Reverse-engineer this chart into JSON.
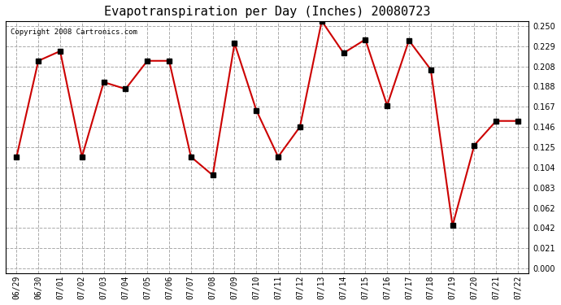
{
  "title": "Evapotranspiration per Day (Inches) 20080723",
  "copyright": "Copyright 2008 Cartronics.com",
  "dates": [
    "06/29",
    "06/30",
    "07/01",
    "07/02",
    "07/03",
    "07/04",
    "07/05",
    "07/06",
    "07/07",
    "07/08",
    "07/09",
    "07/10",
    "07/11",
    "07/12",
    "07/13",
    "07/14",
    "07/15",
    "07/16",
    "07/17",
    "07/18",
    "07/19",
    "07/20",
    "07/21",
    "07/22"
  ],
  "values": [
    0.115,
    0.214,
    0.224,
    0.115,
    0.192,
    0.185,
    0.214,
    0.214,
    0.115,
    0.096,
    0.232,
    0.163,
    0.115,
    0.146,
    0.255,
    0.222,
    0.236,
    0.168,
    0.235,
    0.205,
    0.044,
    0.127,
    0.152,
    0.152
  ],
  "line_color": "#cc0000",
  "marker": "s",
  "marker_size": 4,
  "marker_color": "#000000",
  "background_color": "#ffffff",
  "grid_color": "#aaaaaa",
  "ylim": [
    0.0,
    0.25
  ],
  "yticks": [
    0.0,
    0.021,
    0.042,
    0.062,
    0.083,
    0.104,
    0.125,
    0.146,
    0.167,
    0.188,
    0.208,
    0.229,
    0.25
  ]
}
